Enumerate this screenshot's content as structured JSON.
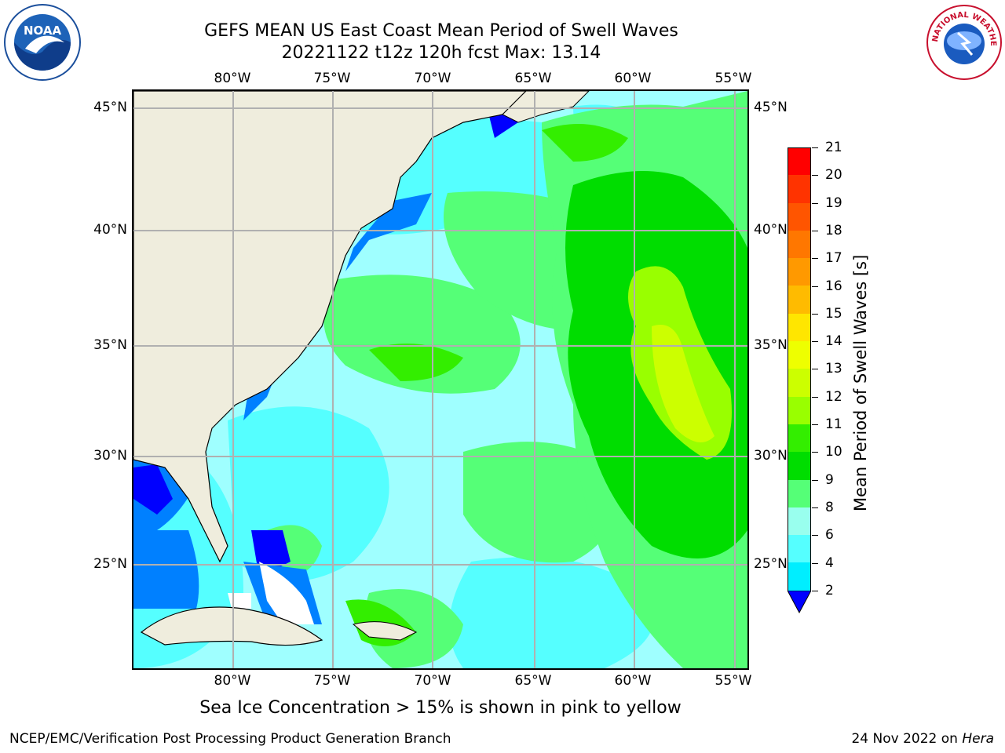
{
  "title": {
    "line1": "GEFS MEAN US East Coast Mean Period of Swell Waves",
    "line2": "20221122 t12z 120h fcst   Max: 13.14"
  },
  "axes": {
    "lon_top": [
      "80°W",
      "75°W",
      "70°W",
      "65°W",
      "60°W",
      "55°W"
    ],
    "lon_bottom": [
      "80°W",
      "75°W",
      "70°W",
      "65°W",
      "60°W",
      "55°W"
    ],
    "lat_left": [
      "45°N",
      "40°N",
      "35°N",
      "30°N",
      "25°N"
    ],
    "lat_right": [
      "45°N",
      "40°N",
      "35°N",
      "30°N",
      "25°N"
    ]
  },
  "colorbar": {
    "title": "Mean Period of Swell Waves [s]",
    "levels": [
      "21",
      "20",
      "19",
      "18",
      "17",
      "16",
      "15",
      "14",
      "13",
      "12",
      "11",
      "10",
      "9",
      "8",
      "6",
      "4",
      "2"
    ],
    "colors": [
      "#ff0000",
      "#ff3300",
      "#ff5500",
      "#ff7700",
      "#ff9900",
      "#ffbb00",
      "#ffe600",
      "#eeff00",
      "#ccff00",
      "#99ff00",
      "#33ee00",
      "#00dd00",
      "#55ff77",
      "#99ffee",
      "#55ffff",
      "#00eeff",
      "#0080ff",
      "#0000ff"
    ],
    "extend": "min"
  },
  "note": "Sea Ice Concentration > 15% is shown in pink to yellow",
  "footer": {
    "left": "NCEP/EMC/Verification Post Processing Product Generation Branch",
    "right_prefix": "24 Nov 2022 on ",
    "right_machine": "Hera"
  },
  "logos": {
    "left": "NOAA",
    "right": "NATIONAL WEATHER SERVICE"
  }
}
